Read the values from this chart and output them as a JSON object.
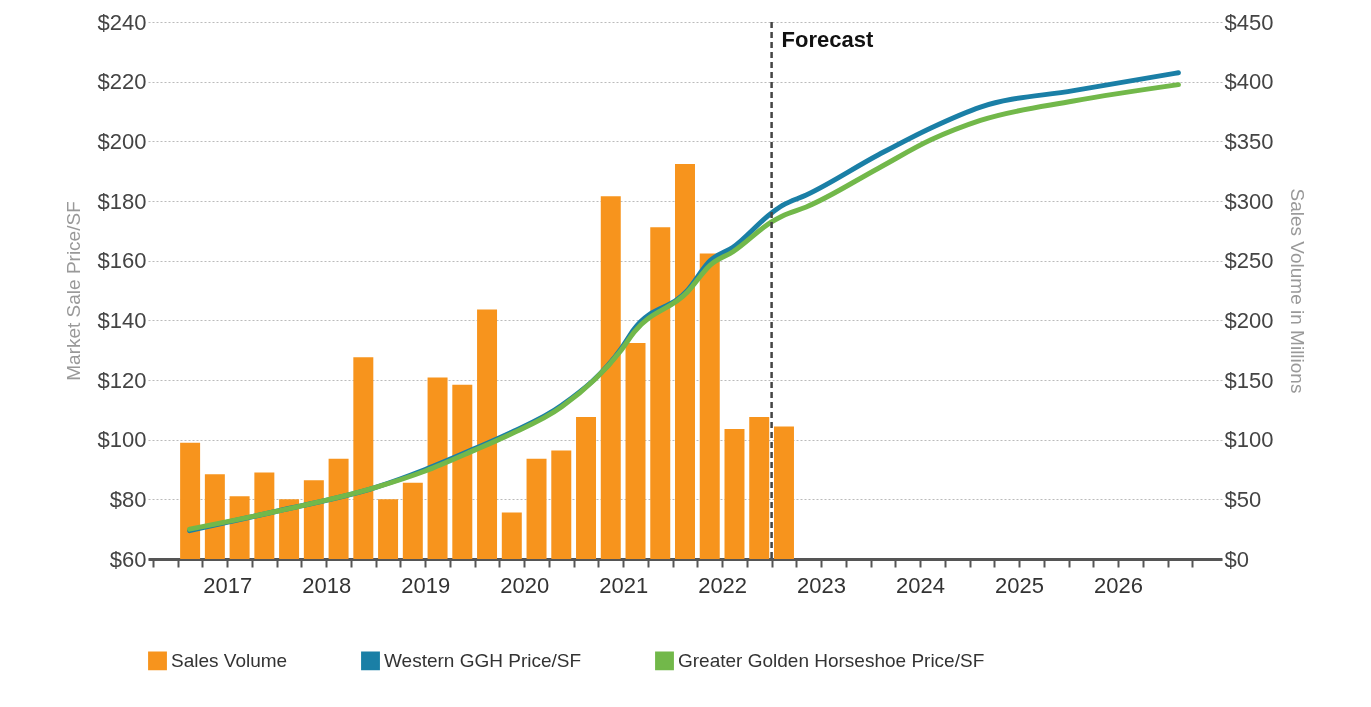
{
  "chart_data": {
    "type": "bar",
    "ylabel": "Market Sale Price/SF",
    "y2label": "Sales Volume in Millions",
    "x": [
      2017.125,
      2017.375,
      2017.625,
      2017.875,
      2018.125,
      2018.375,
      2018.625,
      2018.875,
      2019.125,
      2019.375,
      2019.625,
      2019.875,
      2020.125,
      2020.375,
      2020.625,
      2020.875,
      2021.125,
      2021.375,
      2021.625,
      2021.875,
      2022.125,
      2022.375,
      2022.625,
      2022.875,
      2023.125
    ],
    "series": [
      {
        "name": "Sales Volume",
        "axis": "y2",
        "color": "#f7941d",
        "values": [
          97.5,
          71,
          52.5,
          72.5,
          50,
          66,
          84,
          169,
          50,
          64,
          152,
          146,
          209,
          39,
          84,
          91,
          119,
          304,
          181,
          278,
          331,
          256,
          109,
          119,
          111
        ]
      },
      {
        "name": "Western GGH Price/SF",
        "type": "line",
        "color": "#1a7fa6",
        "x": [
          2017.12,
          2018.0,
          2019.0,
          2019.5,
          2020.0,
          2020.34,
          2020.88,
          2021.48,
          2021.61,
          2022.15,
          2022.38,
          2022.61,
          2023.0,
          2023.11,
          2023.35,
          2024.08,
          2024.61,
          2025.11,
          2026.05,
          2027.11
        ],
        "values": [
          69.5,
          76,
          84,
          90,
          97,
          102,
          111.5,
          130.5,
          137,
          150,
          160,
          164.5,
          176,
          178.5,
          182,
          195.5,
          204.5,
          211.5,
          217,
          223
        ]
      },
      {
        "name": "Greater Golden Horseshoe Price/SF",
        "type": "line",
        "color": "#72b84a",
        "x": [
          2017.12,
          2018.0,
          2019.0,
          2019.5,
          2020.0,
          2020.34,
          2020.88,
          2021.48,
          2021.61,
          2022.15,
          2022.38,
          2022.61,
          2023.0,
          2023.11,
          2023.35,
          2024.08,
          2024.61,
          2025.11,
          2026.05,
          2027.11
        ],
        "values": [
          70,
          76,
          84,
          89.5,
          96.5,
          101.5,
          111,
          130,
          136,
          149.5,
          158.5,
          163,
          173,
          175,
          178,
          191,
          200.5,
          207,
          213.5,
          219
        ]
      }
    ],
    "xlim": [
      2016.75,
      2027.5
    ],
    "xticks": [
      {
        "value": 2016.75,
        "label": null
      },
      {
        "value": 2017,
        "label": null
      },
      {
        "value": 2017.25,
        "label": null
      },
      {
        "value": 2017.5,
        "label": "2017"
      },
      {
        "value": 2017.75,
        "label": null
      },
      {
        "value": 2018,
        "label": null
      },
      {
        "value": 2018.25,
        "label": null
      },
      {
        "value": 2018.5,
        "label": "2018"
      },
      {
        "value": 2018.75,
        "label": null
      },
      {
        "value": 2019,
        "label": null
      },
      {
        "value": 2019.25,
        "label": null
      },
      {
        "value": 2019.5,
        "label": "2019"
      },
      {
        "value": 2019.75,
        "label": null
      },
      {
        "value": 2020,
        "label": null
      },
      {
        "value": 2020.25,
        "label": null
      },
      {
        "value": 2020.5,
        "label": "2020"
      },
      {
        "value": 2020.75,
        "label": null
      },
      {
        "value": 2021,
        "label": null
      },
      {
        "value": 2021.25,
        "label": null
      },
      {
        "value": 2021.5,
        "label": "2021"
      },
      {
        "value": 2021.75,
        "label": null
      },
      {
        "value": 2022,
        "label": null
      },
      {
        "value": 2022.25,
        "label": null
      },
      {
        "value": 2022.5,
        "label": "2022"
      },
      {
        "value": 2022.75,
        "label": null
      },
      {
        "value": 2023,
        "label": null
      },
      {
        "value": 2023.25,
        "label": null
      },
      {
        "value": 2023.5,
        "label": "2023"
      },
      {
        "value": 2023.75,
        "label": null
      },
      {
        "value": 2024,
        "label": null
      },
      {
        "value": 2024.25,
        "label": null
      },
      {
        "value": 2024.5,
        "label": "2024"
      },
      {
        "value": 2024.75,
        "label": null
      },
      {
        "value": 2025,
        "label": null
      },
      {
        "value": 2025.25,
        "label": null
      },
      {
        "value": 2025.5,
        "label": "2025"
      },
      {
        "value": 2025.75,
        "label": null
      },
      {
        "value": 2026,
        "label": null
      },
      {
        "value": 2026.25,
        "label": null
      },
      {
        "value": 2026.5,
        "label": "2026"
      },
      {
        "value": 2026.75,
        "label": null
      },
      {
        "value": 2027,
        "label": null
      },
      {
        "value": 2027.25,
        "label": null
      }
    ],
    "ylim": [
      60,
      240
    ],
    "yticks": [
      {
        "value": 60,
        "label": "$60"
      },
      {
        "value": 80,
        "label": "$80"
      },
      {
        "value": 100,
        "label": "$100"
      },
      {
        "value": 120,
        "label": "$120"
      },
      {
        "value": 140,
        "label": "$140"
      },
      {
        "value": 160,
        "label": "$160"
      },
      {
        "value": 180,
        "label": "$180"
      },
      {
        "value": 200,
        "label": "$200"
      },
      {
        "value": 220,
        "label": "$220"
      },
      {
        "value": 240,
        "label": "$240"
      }
    ],
    "y2lim": [
      0,
      450
    ],
    "y2ticks": [
      {
        "value": 0,
        "label": "$0"
      },
      {
        "value": 50,
        "label": "$50"
      },
      {
        "value": 100,
        "label": "$100"
      },
      {
        "value": 150,
        "label": "$150"
      },
      {
        "value": 200,
        "label": "$200"
      },
      {
        "value": 250,
        "label": "$250"
      },
      {
        "value": 300,
        "label": "$300"
      },
      {
        "value": 350,
        "label": "$350"
      },
      {
        "value": 400,
        "label": "$400"
      },
      {
        "value": 450,
        "label": "$450"
      }
    ],
    "ref_lines": [
      {
        "axis": "x",
        "value": 2023,
        "label": "Forecast",
        "color": "#444444",
        "line_style": "dashed"
      }
    ],
    "grid": "y",
    "legend": "bottom"
  }
}
